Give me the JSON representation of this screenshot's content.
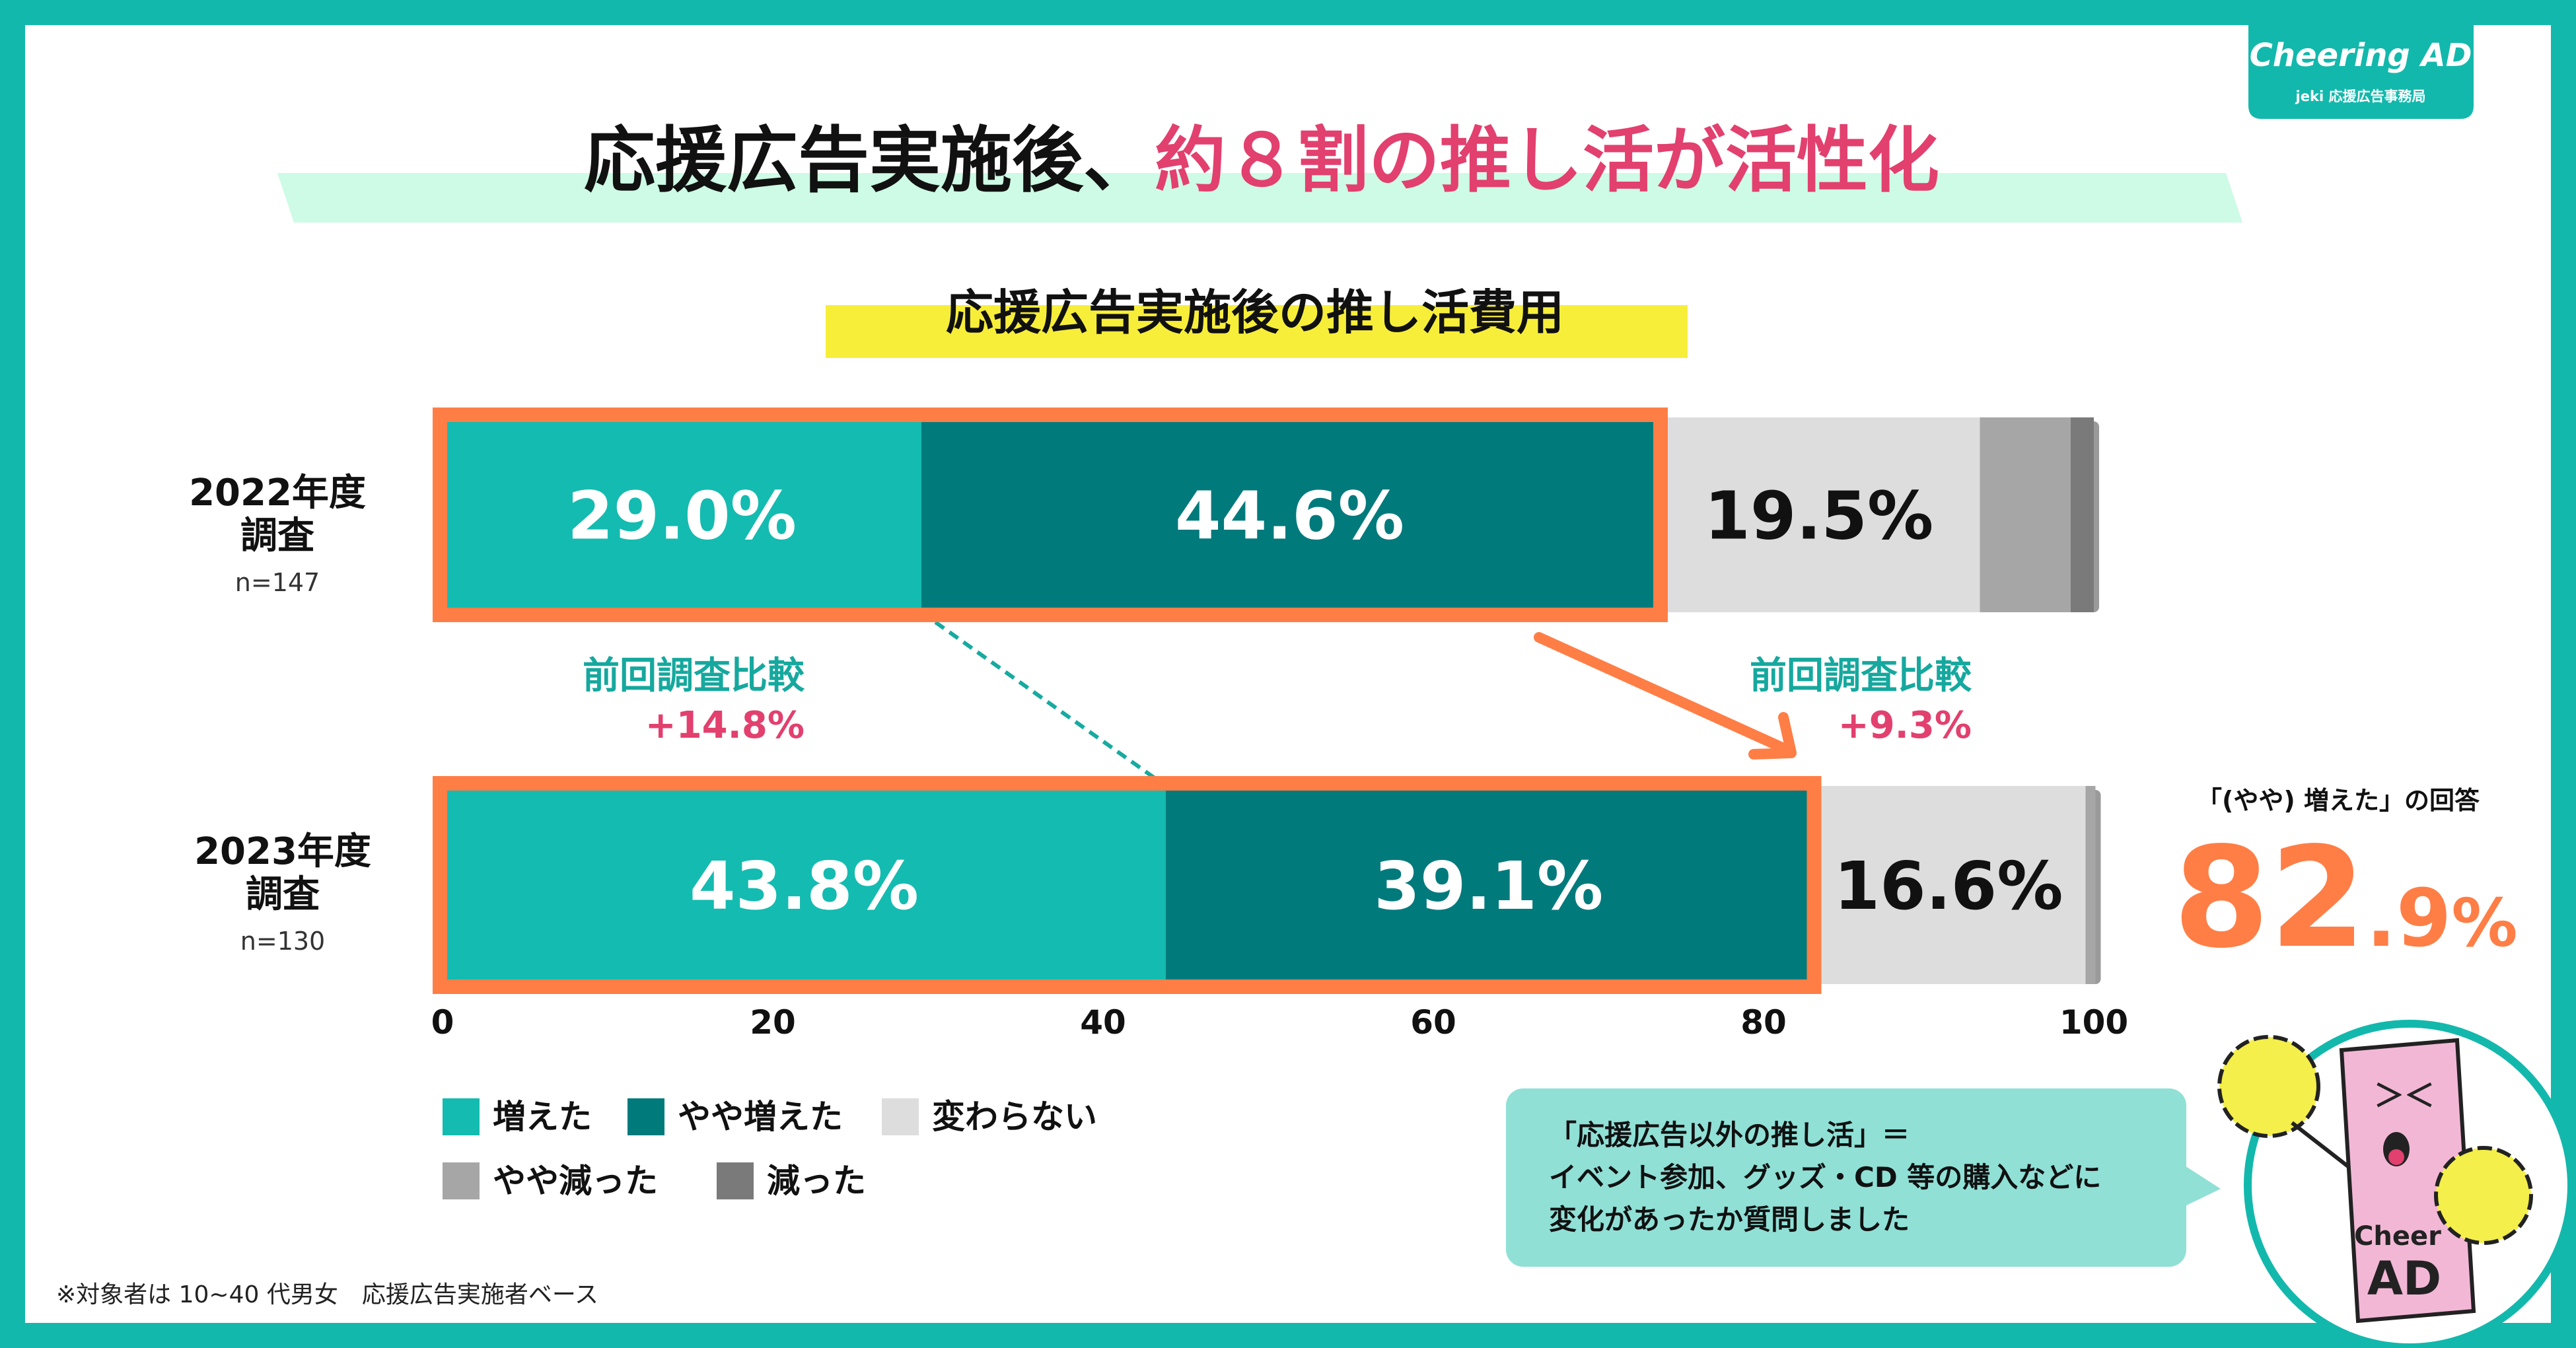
{
  "brand": {
    "logo_text": "Cheering AD",
    "subtitle": "jeki 応援広告事務局"
  },
  "title": {
    "part1": "応援広告実施後、",
    "part2": "約８割の推し活が活性化"
  },
  "chart_data": {
    "type": "bar",
    "orientation": "horizontal",
    "stacked": true,
    "title": "応援広告実施後の推し活費用",
    "categories": [
      "2022年度調査",
      "2023年度調査"
    ],
    "category_lines": [
      [
        "2022年度",
        "調査"
      ],
      [
        "2023年度",
        "調査"
      ]
    ],
    "sample_sizes": [
      "n=147",
      "n=130"
    ],
    "series": [
      {
        "name": "増えた",
        "values": [
          29.0,
          43.8
        ],
        "labels": [
          "29.0%",
          "43.8%"
        ]
      },
      {
        "name": "やや増えた",
        "values": [
          44.6,
          39.1
        ],
        "labels": [
          "44.6%",
          "39.1%"
        ]
      },
      {
        "name": "変わらない",
        "values": [
          19.5,
          16.6
        ],
        "labels": [
          "19.5%",
          "16.6%"
        ]
      },
      {
        "name": "やや減った",
        "values": [
          5.5,
          0.6
        ],
        "labels": [
          "",
          ""
        ]
      },
      {
        "name": "減った",
        "values": [
          1.4,
          0.0
        ],
        "labels": [
          "",
          ""
        ]
      }
    ],
    "xlim": [
      0,
      100
    ],
    "xticks": [
      "0",
      "20",
      "40",
      "60",
      "80",
      "100"
    ],
    "grid": false,
    "legend_position": "bottom-left",
    "annotations": [
      {
        "label": "前回調査比較",
        "value": "+14.8%"
      },
      {
        "label": "前回調査比較",
        "value": "+9.3%"
      }
    ],
    "highlight": {
      "label": "「(やや) 増えた」の回答",
      "value_main": "82",
      "value_decimal": ".9",
      "value_unit": "%"
    }
  },
  "colors": {
    "frame": "#13b8ac",
    "increased": "#14bbb0",
    "slightly_increased": "#017a7c",
    "unchanged": "#dddddd",
    "slightly_decreased": "#a6a6a6",
    "decreased": "#7a7a7a",
    "highlight_orange": "#ff7e46",
    "accent_pink": "#e2406e",
    "teal_text": "#16a89e",
    "title_band": "#cdfbe5",
    "subtitle_band": "#f7ee3a",
    "callout_bg": "#90e0d6"
  },
  "callout": {
    "lines": [
      "「応援広告以外の推し活」＝",
      "イベント参加、グッズ・CD 等の購入などに",
      "変化があったか質問しました"
    ]
  },
  "mascot": {
    "face_text": "＞＜",
    "badge_lines": [
      "Cheer",
      "AD"
    ]
  },
  "footnote": "※対象者は 10~40 代男女　応援広告実施者ベース"
}
